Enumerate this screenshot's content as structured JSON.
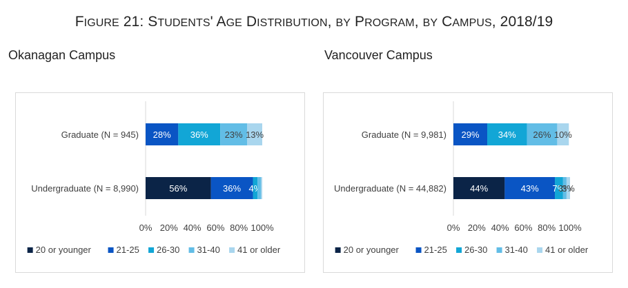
{
  "figure_title": "Figure 21: Students' Age Distribution, by Program, by Campus, 2018/19",
  "colors": {
    "20 or younger": "#0b2447",
    "21-25": "#0a55c4",
    "26-30": "#12a6d6",
    "31-40": "#62bde6",
    "41 or older": "#a9d6ee"
  },
  "chart_data": [
    {
      "type": "bar",
      "orientation": "horizontal",
      "stacked": "percent",
      "title": "Okanagan Campus",
      "categories": [
        "Graduate (N = 945)",
        "Undergraduate (N = 8,990)"
      ],
      "series": [
        {
          "name": "20 or younger",
          "values": [
            0,
            56
          ],
          "labels": [
            "",
            "56%"
          ]
        },
        {
          "name": "21-25",
          "values": [
            28,
            36
          ],
          "labels": [
            "28%",
            "36%"
          ]
        },
        {
          "name": "26-30",
          "values": [
            36,
            4
          ],
          "labels": [
            "36%",
            "4%"
          ]
        },
        {
          "name": "31-40",
          "values": [
            23,
            3
          ],
          "labels": [
            "23%",
            ""
          ]
        },
        {
          "name": "41 or older",
          "values": [
            13,
            1
          ],
          "labels": [
            "13%",
            ""
          ]
        }
      ],
      "xticks": [
        "0%",
        "20%",
        "40%",
        "60%",
        "80%",
        "100%"
      ],
      "xlim": [
        0,
        100
      ],
      "legend": "bottom"
    },
    {
      "type": "bar",
      "orientation": "horizontal",
      "stacked": "percent",
      "title": "Vancouver Campus",
      "categories": [
        "Graduate (N = 9,981)",
        "Undergraduate (N = 44,882)"
      ],
      "series": [
        {
          "name": "20 or younger",
          "values": [
            0,
            44
          ],
          "labels": [
            "",
            "44%"
          ]
        },
        {
          "name": "21-25",
          "values": [
            29,
            43
          ],
          "labels": [
            "29%",
            "43%"
          ]
        },
        {
          "name": "26-30",
          "values": [
            34,
            7
          ],
          "labels": [
            "34%",
            "7%"
          ]
        },
        {
          "name": "31-40",
          "values": [
            26,
            3
          ],
          "labels": [
            "26%",
            "3%"
          ]
        },
        {
          "name": "41 or older",
          "values": [
            10,
            3
          ],
          "labels": [
            "10%",
            "3%"
          ]
        }
      ],
      "xticks": [
        "0%",
        "20%",
        "40%",
        "60%",
        "80%",
        "100%"
      ],
      "xlim": [
        0,
        100
      ],
      "legend": "bottom"
    }
  ]
}
